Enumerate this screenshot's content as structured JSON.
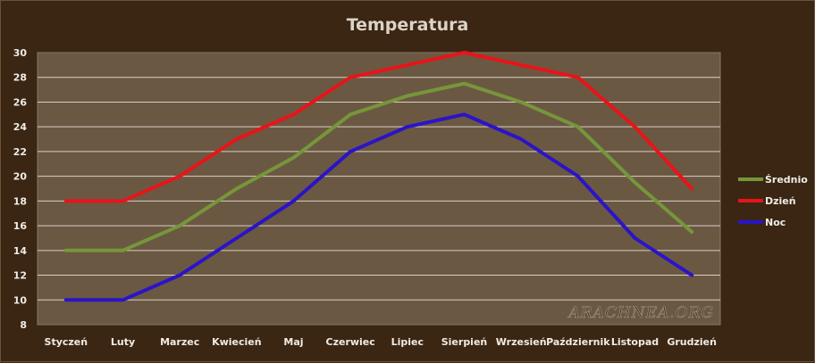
{
  "chart_data": {
    "type": "line",
    "title": "Temperatura",
    "categories": [
      "Styczeń",
      "Luty",
      "Marzec",
      "Kwiecień",
      "Maj",
      "Czerwiec",
      "Lipiec",
      "Sierpień",
      "Wrzesień",
      "Październik",
      "Listopad",
      "Grudzień"
    ],
    "series": [
      {
        "name": "Średnio",
        "color": "#76963a",
        "values": [
          14,
          14,
          16,
          19,
          21.5,
          25,
          26.5,
          27.5,
          26,
          24,
          19.5,
          15.5
        ]
      },
      {
        "name": "Dzień",
        "color": "#e8141a",
        "values": [
          18,
          18,
          20,
          23,
          25,
          28,
          29,
          30,
          29,
          28,
          24,
          19
        ]
      },
      {
        "name": "Noc",
        "color": "#2a14c8",
        "values": [
          10,
          10,
          12,
          15,
          18,
          22,
          24,
          25,
          23,
          20,
          15,
          12
        ]
      }
    ],
    "ylim": [
      8,
      30
    ],
    "yticks": [
      8,
      10,
      12,
      14,
      16,
      18,
      20,
      22,
      24,
      26,
      28,
      30
    ],
    "xlabel": "",
    "ylabel": "",
    "grid": true,
    "legend_position": "right",
    "plot_background": "#6b5843",
    "background": "#3a2613"
  },
  "watermark": "ARACHNEA.ORG"
}
